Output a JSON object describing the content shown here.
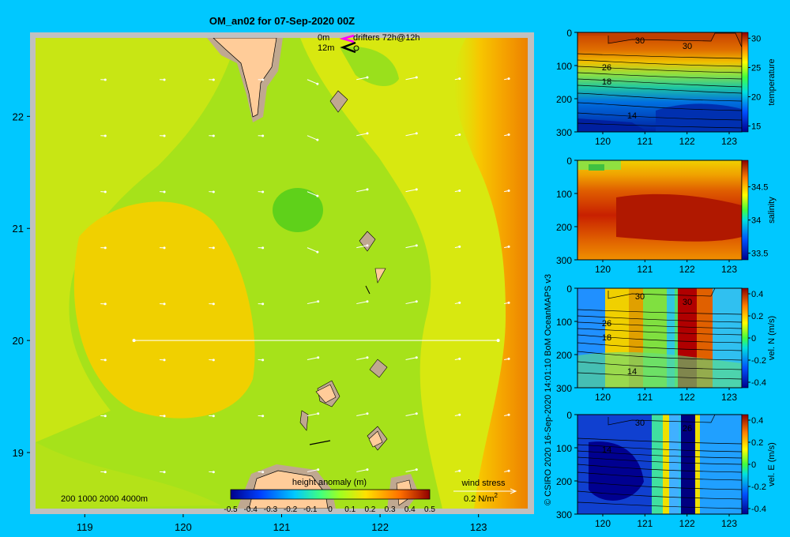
{
  "title": "OM_an02 for 07-Sep-2020 00Z",
  "credit": "© CSIRO 2020  16-Sep-2020 14:01:10 BoM OceanMAPS v3",
  "map": {
    "depth_contours_label": "200  1000  2000  4000m",
    "drifters_legend": {
      "line1_depth": "0m",
      "line1_text": "drifters 72h@12h",
      "line2_depth": "12m"
    },
    "wind_stress_label": "wind stress",
    "wind_stress_scale": "0.2 N/m",
    "wind_stress_scale_sup": "2",
    "colorbar_label": "height anomaly (m)",
    "colorbar_ticks": [
      "-0.5",
      "-0.4",
      "-0.3",
      "-0.2",
      "-0.1",
      "0",
      "0.1",
      "0.2",
      "0.3",
      "0.4",
      "0.5"
    ],
    "section_line": {
      "lon_start": 119.5,
      "lon_end": 123.2,
      "lat": 20.0
    },
    "colors": {
      "background": "#00c8ff",
      "land": "#ffcc99",
      "shelf": "#c0a890",
      "frame": "#c0c0c0"
    }
  },
  "chart_data": [
    {
      "type": "heatmap",
      "title": "OM_an02 for 07-Sep-2020 00Z",
      "variable": "height anomaly (m)",
      "x_ticks": [
        "119",
        "120",
        "121",
        "122",
        "123"
      ],
      "y_ticks": [
        "19",
        "20",
        "21",
        "22"
      ],
      "xlim": [
        118.5,
        123.5
      ],
      "ylim": [
        18.5,
        22.7
      ],
      "clim": [
        -0.5,
        0.5
      ],
      "field_description": "mostly 0.1-0.3 m; low near 121E 21N; high east of 123E"
    },
    {
      "type": "heatmap",
      "ylabel": "temperature",
      "x_ticks": [
        "120",
        "121",
        "122",
        "123"
      ],
      "y_ticks": [
        "0",
        "100",
        "200",
        "300"
      ],
      "cbar_ticks": [
        "15",
        "20",
        "25",
        "30"
      ],
      "contour_labels": [
        "30",
        "30",
        "26",
        "18",
        "14"
      ],
      "clim": [
        14,
        31
      ]
    },
    {
      "type": "heatmap",
      "ylabel": "salinity",
      "x_ticks": [
        "120",
        "121",
        "122",
        "123"
      ],
      "y_ticks": [
        "0",
        "100",
        "200",
        "300"
      ],
      "cbar_ticks": [
        "33.5",
        "34",
        "34.5"
      ],
      "contour_labels": [],
      "clim": [
        33.4,
        34.9
      ]
    },
    {
      "type": "heatmap",
      "ylabel": "vel. N (m/s)",
      "x_ticks": [
        "120",
        "121",
        "122",
        "123"
      ],
      "y_ticks": [
        "0",
        "100",
        "200",
        "300"
      ],
      "cbar_ticks": [
        "0.4",
        "0.2",
        "0",
        "-0.2",
        "-0.4"
      ],
      "contour_labels": [
        "30",
        "30",
        "26",
        "18",
        "14"
      ],
      "clim": [
        -0.45,
        0.45
      ]
    },
    {
      "type": "heatmap",
      "ylabel": "vel. E (m/s)",
      "x_ticks": [
        "120",
        "121",
        "122",
        "123"
      ],
      "y_ticks": [
        "0",
        "100",
        "200",
        "300"
      ],
      "cbar_ticks": [
        "0.4",
        "0.2",
        "0",
        "-0.2",
        "-0.4"
      ],
      "contour_labels": [
        "30",
        "26",
        "14"
      ],
      "clim": [
        -0.45,
        0.45
      ]
    }
  ]
}
